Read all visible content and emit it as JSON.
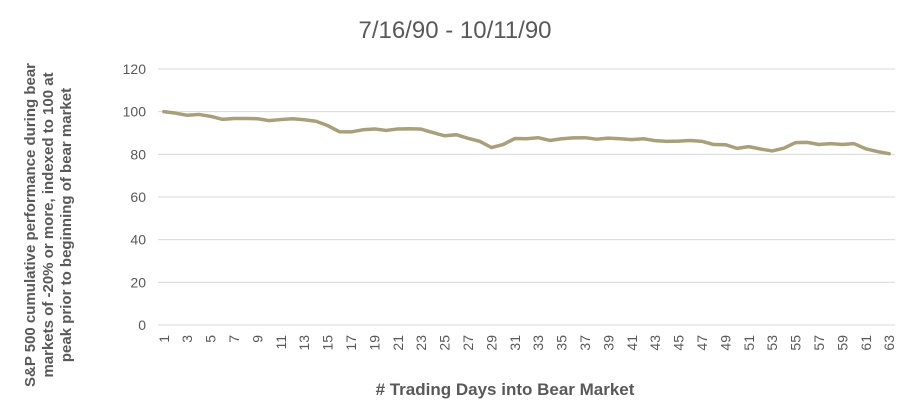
{
  "chart_data": {
    "type": "line",
    "title": "7/16/90 - 10/11/90",
    "xlabel": "# Trading Days into Bear Market",
    "ylabel_lines": [
      "S&P 500 cumulative performance during bear",
      "markets of -20% or more, indexed to 100 at",
      "peak prior to beginning of bear market"
    ],
    "ylim": [
      0,
      120
    ],
    "yticks": [
      0,
      20,
      40,
      60,
      80,
      100,
      120
    ],
    "x": [
      1,
      2,
      3,
      4,
      5,
      6,
      7,
      8,
      9,
      10,
      11,
      12,
      13,
      14,
      15,
      16,
      17,
      18,
      19,
      20,
      21,
      22,
      23,
      24,
      25,
      26,
      27,
      28,
      29,
      30,
      31,
      32,
      33,
      34,
      35,
      36,
      37,
      38,
      39,
      40,
      41,
      42,
      43,
      44,
      45,
      46,
      47,
      48,
      49,
      50,
      51,
      52,
      53,
      54,
      55,
      56,
      57,
      58,
      59,
      60,
      61,
      62,
      63
    ],
    "xtick_labels": [
      "1",
      "3",
      "5",
      "7",
      "9",
      "11",
      "13",
      "15",
      "17",
      "19",
      "21",
      "23",
      "25",
      "27",
      "29",
      "31",
      "33",
      "35",
      "37",
      "39",
      "41",
      "43",
      "45",
      "47",
      "49",
      "51",
      "53",
      "55",
      "57",
      "59",
      "61",
      "63"
    ],
    "series": [
      {
        "values": [
          100,
          99.3,
          98.3,
          98.7,
          97.8,
          96.4,
          96.8,
          96.8,
          96.7,
          95.8,
          96.3,
          96.7,
          96.2,
          95.5,
          93.5,
          90.6,
          90.5,
          91.5,
          91.9,
          91.2,
          91.9,
          92.0,
          91.8,
          90.2,
          88.7,
          89.2,
          87.5,
          86.1,
          83.2,
          84.6,
          87.4,
          87.3,
          87.8,
          86.5,
          87.3,
          87.7,
          87.8,
          87.1,
          87.6,
          87.3,
          86.9,
          87.3,
          86.4,
          86.1,
          86.2,
          86.5,
          86.1,
          84.6,
          84.5,
          82.8,
          83.6,
          82.5,
          81.6,
          82.9,
          85.5,
          85.6,
          84.6,
          85.0,
          84.6,
          85.0,
          82.6,
          81.3,
          80.3
        ],
        "color": "#a89f7b"
      }
    ],
    "grid": "horizontal",
    "legend": "none"
  }
}
